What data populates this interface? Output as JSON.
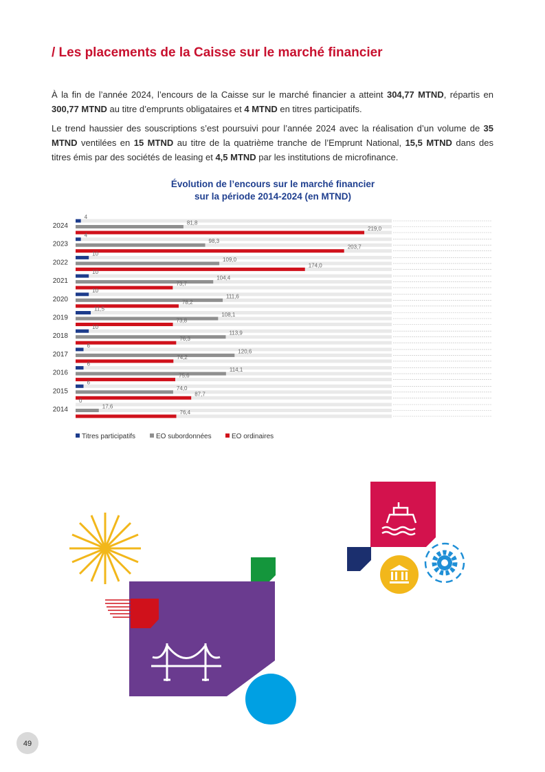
{
  "header": {
    "title": "/ Les placements de la Caisse sur le marché financier"
  },
  "paragraphs": [
    [
      {
        "text": "À la fin de l’année 2024, l’encours de la Caisse sur le marché financier a atteint ",
        "bold": false
      },
      {
        "text": "304,77 MTND",
        "bold": true
      },
      {
        "text": ", répartis en ",
        "bold": false
      },
      {
        "text": "300,77 MTND",
        "bold": true
      },
      {
        "text": " au titre d’emprunts obligataires et ",
        "bold": false
      },
      {
        "text": "4 MTND",
        "bold": true
      },
      {
        "text": " en titres participatifs.",
        "bold": false
      }
    ],
    [
      {
        "text": "Le trend haussier des souscriptions s’est poursuivi pour l’année 2024 avec la réalisation d’un volume de ",
        "bold": false
      },
      {
        "text": "35 MTND",
        "bold": true
      },
      {
        "text": " ventilées en ",
        "bold": false
      },
      {
        "text": "15 MTND",
        "bold": true
      },
      {
        "text": " au titre de la quatrième tranche de l’Emprunt National, ",
        "bold": false
      },
      {
        "text": "15,5 MTND",
        "bold": true
      },
      {
        "text": " dans des titres émis par des sociétés de leasing et ",
        "bold": false
      },
      {
        "text": "4,5 MTND",
        "bold": true
      },
      {
        "text": " par les institutions de microfinance.",
        "bold": false
      }
    ]
  ],
  "chart_data": {
    "type": "barh",
    "title": [
      "Évolution de l’encours sur le marché financier",
      "sur la période 2014-2024 (en MTND)"
    ],
    "categories": [
      "2024",
      "2023",
      "2022",
      "2021",
      "2020",
      "2019",
      "2018",
      "2017",
      "2016",
      "2015",
      "2014"
    ],
    "series": [
      {
        "name": "Titres participatifs",
        "color": "#1d3c8c",
        "values": [
          4,
          4,
          10,
          10,
          10,
          11.5,
          10,
          6,
          6,
          6,
          0
        ],
        "value_labels": [
          "4",
          "4",
          "10",
          "10",
          "10",
          "11,5",
          "10",
          "6",
          "6",
          "6",
          "0"
        ]
      },
      {
        "name": "EO subordonnées",
        "color": "#8f8f8f",
        "values": [
          81.8,
          98.3,
          109.0,
          104.4,
          111.6,
          108.1,
          113.9,
          120.6,
          114.1,
          74.0,
          17.6
        ],
        "value_labels": [
          "81,8",
          "98,3",
          "109,0",
          "104,4",
          "111,6",
          "108,1",
          "113,9",
          "120,6",
          "114,1",
          "74,0",
          "17,6"
        ]
      },
      {
        "name": "EO ordinaires",
        "color": "#d0111b",
        "values": [
          219.0,
          203.7,
          174.0,
          73.7,
          78.2,
          73.8,
          76.3,
          74.2,
          75.6,
          87.7,
          76.4
        ],
        "value_labels": [
          "219,0",
          "203,7",
          "174,0",
          "73,7",
          "78,2",
          "73,8",
          "76,3",
          "74,2",
          "75,6",
          "87,7",
          "76,4"
        ]
      }
    ]
  },
  "footer": {
    "page_number": "49"
  }
}
